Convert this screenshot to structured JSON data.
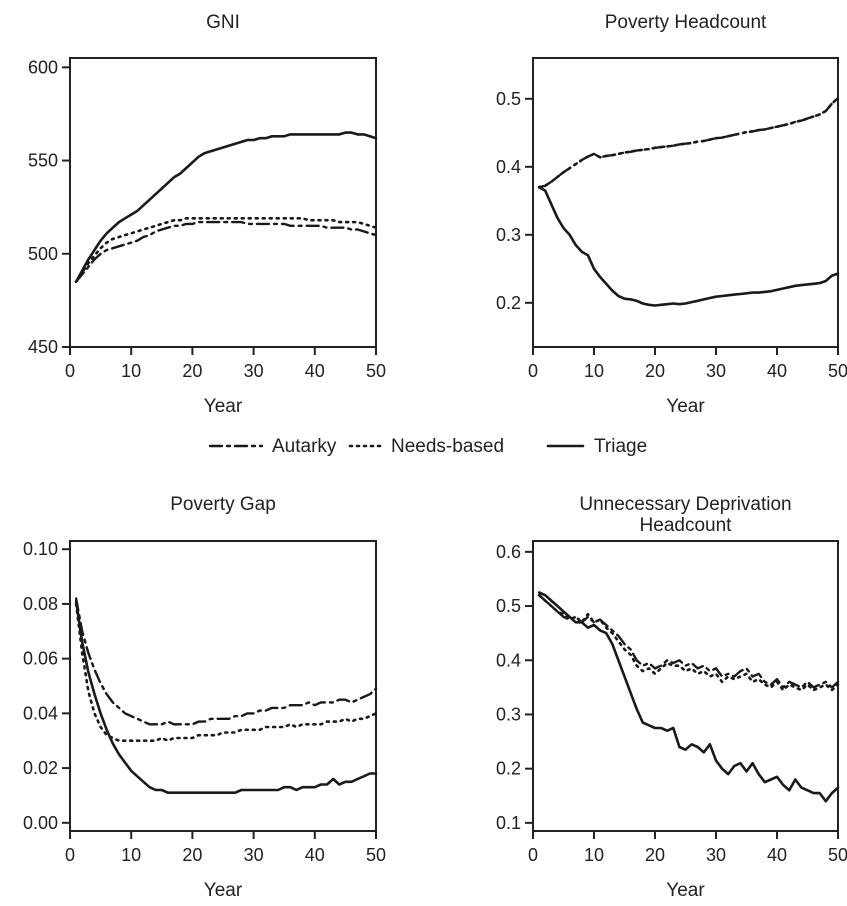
{
  "legend": [
    {
      "name": "Autarky",
      "style": "dashdot"
    },
    {
      "name": "Needs-based",
      "style": "dotted"
    },
    {
      "name": "Triage",
      "style": "solid"
    }
  ],
  "chart_data": [
    {
      "type": "line",
      "title": "GNI",
      "xlabel": "Year",
      "ylabel": "",
      "xlim": [
        0,
        50
      ],
      "ylim": [
        450,
        605
      ],
      "xticks": [
        0,
        10,
        20,
        30,
        40,
        50
      ],
      "yticks": [
        450,
        500,
        550,
        600
      ],
      "yticklabels": [
        "450",
        "500",
        "550",
        "600"
      ],
      "x": [
        1,
        2,
        3,
        4,
        5,
        6,
        7,
        8,
        9,
        10,
        11,
        12,
        13,
        14,
        15,
        16,
        17,
        18,
        19,
        20,
        21,
        22,
        23,
        24,
        25,
        26,
        27,
        28,
        29,
        30,
        31,
        32,
        33,
        34,
        35,
        36,
        37,
        38,
        39,
        40,
        41,
        42,
        43,
        44,
        45,
        46,
        47,
        48,
        49,
        50
      ],
      "series": [
        {
          "name": "Autarky",
          "style": "dashdot",
          "values": [
            485,
            489,
            493,
            497,
            500,
            502,
            503,
            504,
            505,
            506,
            507,
            509,
            510,
            512,
            513,
            514,
            515,
            515,
            516,
            516,
            517,
            517,
            517,
            517,
            517,
            517,
            517,
            517,
            516,
            516,
            516,
            516,
            516,
            516,
            516,
            515,
            515,
            515,
            515,
            515,
            515,
            514,
            514,
            514,
            514,
            513,
            513,
            512,
            511,
            510
          ]
        },
        {
          "name": "Needs-based",
          "style": "dotted",
          "values": [
            485,
            490,
            495,
            499,
            503,
            506,
            508,
            509,
            510,
            511,
            512,
            513,
            514,
            515,
            516,
            517,
            518,
            518,
            519,
            519,
            519,
            519,
            519,
            519,
            519,
            519,
            519,
            519,
            519,
            519,
            519,
            519,
            519,
            519,
            519,
            519,
            519,
            519,
            518,
            518,
            518,
            518,
            518,
            517,
            517,
            517,
            517,
            516,
            515,
            514
          ]
        },
        {
          "name": "Triage",
          "style": "solid",
          "values": [
            485,
            491,
            497,
            502,
            507,
            511,
            514,
            517,
            519,
            521,
            523,
            526,
            529,
            532,
            535,
            538,
            541,
            543,
            546,
            549,
            552,
            554,
            555,
            556,
            557,
            558,
            559,
            560,
            561,
            561,
            562,
            562,
            563,
            563,
            563,
            564,
            564,
            564,
            564,
            564,
            564,
            564,
            564,
            564,
            565,
            565,
            564,
            564,
            563,
            562
          ]
        }
      ]
    },
    {
      "type": "line",
      "title": "Poverty Headcount",
      "xlabel": "Year",
      "ylabel": "",
      "xlim": [
        0,
        50
      ],
      "ylim": [
        0.135,
        0.56
      ],
      "xticks": [
        0,
        10,
        20,
        30,
        40,
        50
      ],
      "yticks": [
        0.2,
        0.3,
        0.4,
        0.5
      ],
      "yticklabels": [
        "0.2",
        "0.3",
        "0.4",
        "0.5"
      ],
      "x": [
        1,
        2,
        3,
        4,
        5,
        6,
        7,
        8,
        9,
        10,
        11,
        12,
        13,
        14,
        15,
        16,
        17,
        18,
        19,
        20,
        21,
        22,
        23,
        24,
        25,
        26,
        27,
        28,
        29,
        30,
        31,
        32,
        33,
        34,
        35,
        36,
        37,
        38,
        39,
        40,
        41,
        42,
        43,
        44,
        45,
        46,
        47,
        48,
        49,
        50
      ],
      "series": [
        {
          "name": "Autarky",
          "style": "dashdot",
          "values": [
            0.37,
            0.372,
            0.378,
            0.385,
            0.392,
            0.398,
            0.404,
            0.41,
            0.415,
            0.419,
            0.414,
            0.416,
            0.417,
            0.419,
            0.421,
            0.422,
            0.424,
            0.425,
            0.426,
            0.428,
            0.429,
            0.43,
            0.431,
            0.433,
            0.434,
            0.435,
            0.437,
            0.438,
            0.44,
            0.442,
            0.443,
            0.445,
            0.447,
            0.449,
            0.451,
            0.452,
            0.454,
            0.455,
            0.457,
            0.459,
            0.461,
            0.463,
            0.466,
            0.468,
            0.471,
            0.474,
            0.477,
            0.482,
            0.493,
            0.501
          ]
        },
        {
          "name": "Needs-based",
          "style": "dotted",
          "values": [
            0.37,
            0.372,
            0.378,
            0.385,
            0.392,
            0.398,
            0.404,
            0.41,
            0.415,
            0.419,
            0.414,
            0.416,
            0.417,
            0.419,
            0.421,
            0.422,
            0.424,
            0.425,
            0.426,
            0.428,
            0.429,
            0.43,
            0.431,
            0.433,
            0.434,
            0.435,
            0.437,
            0.438,
            0.44,
            0.442,
            0.443,
            0.445,
            0.447,
            0.449,
            0.451,
            0.452,
            0.454,
            0.455,
            0.457,
            0.459,
            0.461,
            0.463,
            0.466,
            0.468,
            0.471,
            0.474,
            0.477,
            0.482,
            0.493,
            0.501
          ]
        },
        {
          "name": "Triage",
          "style": "solid",
          "values": [
            0.37,
            0.365,
            0.345,
            0.325,
            0.31,
            0.3,
            0.285,
            0.275,
            0.27,
            0.25,
            0.238,
            0.228,
            0.218,
            0.21,
            0.206,
            0.205,
            0.203,
            0.199,
            0.197,
            0.196,
            0.197,
            0.198,
            0.199,
            0.198,
            0.199,
            0.201,
            0.203,
            0.205,
            0.207,
            0.209,
            0.21,
            0.211,
            0.212,
            0.213,
            0.214,
            0.215,
            0.215,
            0.216,
            0.217,
            0.219,
            0.221,
            0.223,
            0.225,
            0.226,
            0.227,
            0.228,
            0.229,
            0.232,
            0.24,
            0.243
          ]
        }
      ]
    },
    {
      "type": "line",
      "title": "Poverty Gap",
      "xlabel": "Year",
      "ylabel": "",
      "xlim": [
        0,
        50
      ],
      "ylim": [
        -0.003,
        0.103
      ],
      "xticks": [
        0,
        10,
        20,
        30,
        40,
        50
      ],
      "yticks": [
        0.0,
        0.02,
        0.04,
        0.06,
        0.08,
        0.1
      ],
      "yticklabels": [
        "0.00",
        "0.02",
        "0.04",
        "0.06",
        "0.08",
        "0.10"
      ],
      "x": [
        1,
        2,
        3,
        4,
        5,
        6,
        7,
        8,
        9,
        10,
        11,
        12,
        13,
        14,
        15,
        16,
        17,
        18,
        19,
        20,
        21,
        22,
        23,
        24,
        25,
        26,
        27,
        28,
        29,
        30,
        31,
        32,
        33,
        34,
        35,
        36,
        37,
        38,
        39,
        40,
        41,
        42,
        43,
        44,
        45,
        46,
        47,
        48,
        49,
        50
      ],
      "series": [
        {
          "name": "Autarky",
          "style": "dashdot",
          "values": [
            0.082,
            0.07,
            0.062,
            0.056,
            0.051,
            0.047,
            0.044,
            0.042,
            0.04,
            0.039,
            0.038,
            0.037,
            0.036,
            0.036,
            0.036,
            0.037,
            0.036,
            0.036,
            0.036,
            0.036,
            0.037,
            0.037,
            0.038,
            0.038,
            0.038,
            0.038,
            0.039,
            0.039,
            0.04,
            0.04,
            0.041,
            0.041,
            0.042,
            0.042,
            0.042,
            0.043,
            0.043,
            0.043,
            0.044,
            0.043,
            0.044,
            0.044,
            0.044,
            0.045,
            0.045,
            0.044,
            0.045,
            0.046,
            0.047,
            0.049
          ]
        },
        {
          "name": "Needs-based",
          "style": "dotted",
          "values": [
            0.08,
            0.062,
            0.048,
            0.04,
            0.035,
            0.032,
            0.031,
            0.03,
            0.03,
            0.03,
            0.03,
            0.03,
            0.03,
            0.03,
            0.031,
            0.03,
            0.031,
            0.031,
            0.031,
            0.031,
            0.032,
            0.032,
            0.032,
            0.032,
            0.033,
            0.033,
            0.033,
            0.034,
            0.034,
            0.034,
            0.034,
            0.035,
            0.035,
            0.035,
            0.035,
            0.036,
            0.035,
            0.036,
            0.036,
            0.036,
            0.036,
            0.037,
            0.037,
            0.037,
            0.038,
            0.037,
            0.038,
            0.038,
            0.039,
            0.04
          ]
        },
        {
          "name": "Triage",
          "style": "solid",
          "values": [
            0.081,
            0.066,
            0.055,
            0.047,
            0.04,
            0.034,
            0.029,
            0.025,
            0.022,
            0.019,
            0.017,
            0.015,
            0.013,
            0.012,
            0.012,
            0.011,
            0.011,
            0.011,
            0.011,
            0.011,
            0.011,
            0.011,
            0.011,
            0.011,
            0.011,
            0.011,
            0.011,
            0.012,
            0.012,
            0.012,
            0.012,
            0.012,
            0.012,
            0.012,
            0.013,
            0.013,
            0.012,
            0.013,
            0.013,
            0.013,
            0.014,
            0.014,
            0.016,
            0.014,
            0.015,
            0.015,
            0.016,
            0.017,
            0.018,
            0.018
          ]
        }
      ]
    },
    {
      "type": "line",
      "title": "Unnecessary Deprivation Headcount",
      "title_lines": [
        "Unnecessary Deprivation",
        "Headcount"
      ],
      "xlabel": "Year",
      "ylabel": "",
      "xlim": [
        0,
        50
      ],
      "ylim": [
        0.085,
        0.62
      ],
      "xticks": [
        0,
        10,
        20,
        30,
        40,
        50
      ],
      "yticks": [
        0.1,
        0.2,
        0.3,
        0.4,
        0.5,
        0.6
      ],
      "yticklabels": [
        "0.1",
        "0.2",
        "0.3",
        "0.4",
        "0.5",
        "0.6"
      ],
      "x": [
        1,
        2,
        3,
        4,
        5,
        6,
        7,
        8,
        9,
        10,
        11,
        12,
        13,
        14,
        15,
        16,
        17,
        18,
        19,
        20,
        21,
        22,
        23,
        24,
        25,
        26,
        27,
        28,
        29,
        30,
        31,
        32,
        33,
        34,
        35,
        36,
        37,
        38,
        39,
        40,
        41,
        42,
        43,
        44,
        45,
        46,
        47,
        48,
        49,
        50
      ],
      "series": [
        {
          "name": "Autarky",
          "style": "dashdot",
          "values": [
            0.52,
            0.51,
            0.5,
            0.49,
            0.48,
            0.475,
            0.48,
            0.47,
            0.48,
            0.47,
            0.475,
            0.465,
            0.455,
            0.445,
            0.43,
            0.42,
            0.4,
            0.39,
            0.395,
            0.385,
            0.39,
            0.4,
            0.395,
            0.4,
            0.39,
            0.395,
            0.385,
            0.39,
            0.38,
            0.385,
            0.37,
            0.375,
            0.37,
            0.38,
            0.385,
            0.37,
            0.375,
            0.36,
            0.355,
            0.365,
            0.35,
            0.36,
            0.355,
            0.35,
            0.36,
            0.35,
            0.355,
            0.36,
            0.35,
            0.36
          ]
        },
        {
          "name": "Needs-based",
          "style": "dotted",
          "values": [
            0.52,
            0.51,
            0.5,
            0.49,
            0.485,
            0.475,
            0.48,
            0.47,
            0.485,
            0.47,
            0.475,
            0.46,
            0.45,
            0.435,
            0.42,
            0.41,
            0.39,
            0.38,
            0.385,
            0.375,
            0.385,
            0.395,
            0.39,
            0.39,
            0.38,
            0.385,
            0.375,
            0.38,
            0.37,
            0.375,
            0.36,
            0.37,
            0.365,
            0.37,
            0.375,
            0.36,
            0.365,
            0.355,
            0.35,
            0.36,
            0.345,
            0.355,
            0.35,
            0.345,
            0.355,
            0.345,
            0.35,
            0.355,
            0.345,
            0.355
          ]
        },
        {
          "name": "Triage",
          "style": "solid",
          "values": [
            0.525,
            0.52,
            0.51,
            0.5,
            0.49,
            0.48,
            0.47,
            0.47,
            0.46,
            0.465,
            0.455,
            0.45,
            0.43,
            0.4,
            0.37,
            0.34,
            0.31,
            0.285,
            0.28,
            0.275,
            0.275,
            0.27,
            0.275,
            0.24,
            0.235,
            0.245,
            0.24,
            0.23,
            0.245,
            0.215,
            0.2,
            0.19,
            0.205,
            0.21,
            0.195,
            0.21,
            0.19,
            0.175,
            0.18,
            0.185,
            0.17,
            0.16,
            0.18,
            0.165,
            0.16,
            0.155,
            0.155,
            0.14,
            0.155,
            0.165
          ]
        }
      ]
    }
  ]
}
